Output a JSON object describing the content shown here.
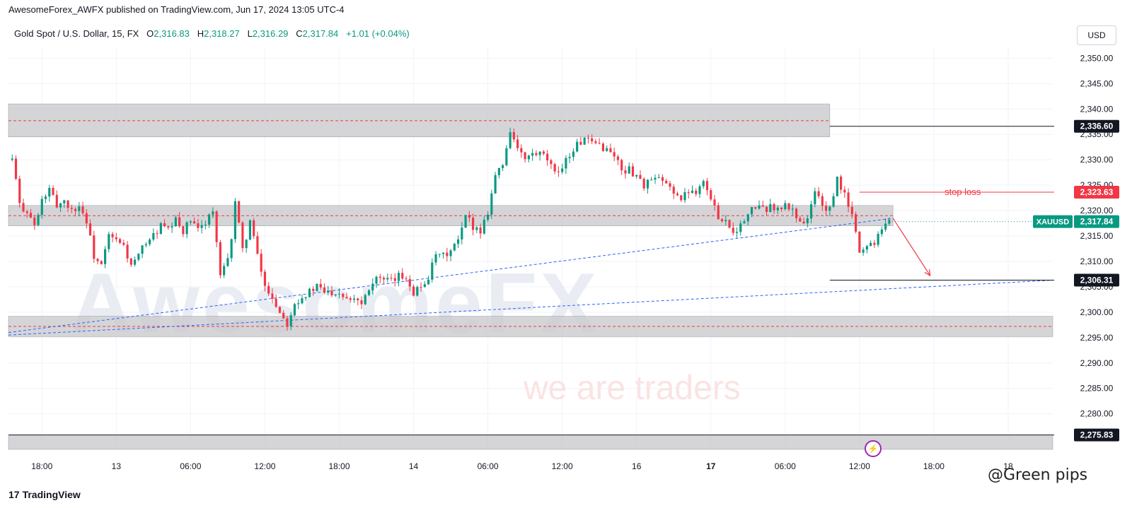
{
  "header": {
    "published": "AwesomeForex_AWFX published on TradingView.com, Jun 17, 2024 13:05 UTC-4"
  },
  "legend": {
    "symbol": "Gold Spot / U.S. Dollar, 15, FX",
    "o_label": "O",
    "o": "2,316.83",
    "h_label": "H",
    "h": "2,318.27",
    "l_label": "L",
    "l": "2,316.29",
    "c_label": "C",
    "c": "2,317.84",
    "change": "+1.01 (+0.04%)"
  },
  "currency_button": "USD",
  "watermark": {
    "text": "AwesomeFX",
    "tagline": "we are traders"
  },
  "footer": {
    "brand": "TradingView",
    "logo_glyph": "17",
    "user_mark": "@Green pips"
  },
  "chart_data": {
    "type": "candlestick",
    "symbol": "XAUUSD",
    "timeframe": "15",
    "ylim": [
      2273,
      2352
    ],
    "y_ticks": [
      2280,
      2285,
      2290,
      2295,
      2300,
      2305,
      2310,
      2315,
      2320,
      2325,
      2330,
      2335,
      2340,
      2345,
      2350
    ],
    "y_tick_labels": [
      "2,280.00",
      "2,285.00",
      "2,290.00",
      "2,295.00",
      "2,300.00",
      "2,305.00",
      "2,310.00",
      "2,315.00",
      "2,320.00",
      "2,325.00",
      "2,330.00",
      "2,335.00",
      "2,340.00",
      "2,345.00",
      "2,350.00"
    ],
    "x_ticks": [
      {
        "label": "18:00",
        "t": 4
      },
      {
        "label": "13",
        "t": 14
      },
      {
        "label": "06:00",
        "t": 24
      },
      {
        "label": "12:00",
        "t": 34
      },
      {
        "label": "18:00",
        "t": 44
      },
      {
        "label": "14",
        "t": 54
      },
      {
        "label": "06:00",
        "t": 64
      },
      {
        "label": "12:00",
        "t": 74
      },
      {
        "label": "16",
        "t": 84
      },
      {
        "label": "17",
        "t": 94
      },
      {
        "label": "06:00",
        "t": 104
      },
      {
        "label": "12:00",
        "t": 114
      },
      {
        "label": "18:00",
        "t": 124
      },
      {
        "label": "18",
        "t": 134
      }
    ],
    "t_range": [
      -0.5,
      140
    ],
    "close_path": [
      [
        0,
        2330
      ],
      [
        0.5,
        2326
      ],
      [
        1,
        2321
      ],
      [
        2,
        2320
      ],
      [
        3,
        2317
      ],
      [
        3.5,
        2319
      ],
      [
        4,
        2322
      ],
      [
        5,
        2324
      ],
      [
        6,
        2321
      ],
      [
        7,
        2322
      ],
      [
        8,
        2320
      ],
      [
        9,
        2321
      ],
      [
        10,
        2318
      ],
      [
        11,
        2311
      ],
      [
        12,
        2309
      ],
      [
        13,
        2315
      ],
      [
        14,
        2314
      ],
      [
        15,
        2313
      ],
      [
        16,
        2309
      ],
      [
        17,
        2311
      ],
      [
        18,
        2314
      ],
      [
        19,
        2315
      ],
      [
        20,
        2317
      ],
      [
        21,
        2316
      ],
      [
        22,
        2318
      ],
      [
        23,
        2316
      ],
      [
        24,
        2318
      ],
      [
        25,
        2316
      ],
      [
        26,
        2318
      ],
      [
        27,
        2320
      ],
      [
        27.6,
        2312
      ],
      [
        28,
        2307
      ],
      [
        29,
        2310
      ],
      [
        29.6,
        2316
      ],
      [
        30,
        2322
      ],
      [
        30.5,
        2317
      ],
      [
        31,
        2312
      ],
      [
        32,
        2318
      ],
      [
        33,
        2311
      ],
      [
        34,
        2305
      ],
      [
        35,
        2303
      ],
      [
        36,
        2300
      ],
      [
        37,
        2298
      ],
      [
        38,
        2302
      ],
      [
        39,
        2303
      ],
      [
        40,
        2304
      ],
      [
        41,
        2305
      ],
      [
        42,
        2304
      ],
      [
        43,
        2304
      ],
      [
        44,
        2304
      ],
      [
        45,
        2303
      ],
      [
        46,
        2303
      ],
      [
        47,
        2302
      ],
      [
        48,
        2305
      ],
      [
        49,
        2307
      ],
      [
        50,
        2306
      ],
      [
        51,
        2306
      ],
      [
        52,
        2307
      ],
      [
        53,
        2307
      ],
      [
        54,
        2304
      ],
      [
        55,
        2305
      ],
      [
        56,
        2307
      ],
      [
        57,
        2311
      ],
      [
        58,
        2311
      ],
      [
        59,
        2312
      ],
      [
        60,
        2314
      ],
      [
        60.5,
        2316
      ],
      [
        61,
        2319
      ],
      [
        62,
        2317
      ],
      [
        63,
        2316
      ],
      [
        64,
        2320
      ],
      [
        65,
        2327
      ],
      [
        66,
        2329
      ],
      [
        67,
        2336
      ],
      [
        68,
        2332
      ],
      [
        69,
        2330
      ],
      [
        70,
        2331
      ],
      [
        71,
        2331
      ],
      [
        72,
        2330
      ],
      [
        73,
        2327
      ],
      [
        74,
        2329
      ],
      [
        75,
        2331
      ],
      [
        76,
        2333
      ],
      [
        77,
        2334
      ],
      [
        78,
        2333
      ],
      [
        79,
        2333
      ],
      [
        80,
        2332
      ],
      [
        81,
        2331
      ],
      [
        82,
        2328
      ],
      [
        83,
        2328
      ],
      [
        84,
        2327
      ],
      [
        85,
        2325
      ],
      [
        86,
        2326
      ],
      [
        87,
        2326
      ],
      [
        88,
        2325
      ],
      [
        89,
        2324
      ],
      [
        90,
        2322
      ],
      [
        91,
        2324
      ],
      [
        92,
        2324
      ],
      [
        93,
        2326
      ],
      [
        94,
        2322
      ],
      [
        95,
        2319
      ],
      [
        96,
        2318
      ],
      [
        97,
        2316
      ],
      [
        98,
        2317
      ],
      [
        99,
        2319
      ],
      [
        100,
        2321
      ],
      [
        101,
        2320
      ],
      [
        102,
        2321
      ],
      [
        103,
        2320
      ],
      [
        104,
        2321
      ],
      [
        105,
        2320
      ],
      [
        106,
        2318
      ],
      [
        107,
        2318
      ],
      [
        108,
        2324
      ],
      [
        109,
        2321
      ],
      [
        110,
        2320
      ],
      [
        111,
        2326
      ],
      [
        112,
        2323
      ],
      [
        113,
        2319
      ],
      [
        114,
        2312
      ],
      [
        115,
        2313
      ],
      [
        116,
        2314
      ],
      [
        117,
        2317
      ],
      [
        118,
        2318
      ]
    ],
    "zones": [
      {
        "from_t": -0.5,
        "to_t": 110,
        "low": 2334.5,
        "high": 2341.0,
        "mid": 2337.7
      },
      {
        "from_t": -0.5,
        "to_t": 118.5,
        "low": 2317.0,
        "high": 2321.0,
        "mid": 2319.0
      },
      {
        "from_t": -0.5,
        "to_t": 140,
        "low": 2295.2,
        "high": 2299.2,
        "mid": 2297.2
      },
      {
        "from_t": -0.5,
        "to_t": 140,
        "low": 2273.0,
        "high": 2275.83,
        "mid": null
      }
    ],
    "horizontal_lines": [
      {
        "value": 2336.6,
        "from_t": 110,
        "label": "2,336.60",
        "color": "#131722"
      },
      {
        "value": 2323.63,
        "from_t": 114,
        "label": "2,323.63",
        "color": "#f23645",
        "text": "stop loss"
      },
      {
        "value": 2317.84,
        "from_t": 118,
        "label": "2,317.84",
        "color": "#089981",
        "symbol": "XAUUSD"
      },
      {
        "value": 2306.31,
        "from_t": 110,
        "label": "2,306.31",
        "color": "#131722"
      },
      {
        "value": 2275.83,
        "from_t": -0.5,
        "label": "2,275.83",
        "color": "#131722"
      }
    ],
    "trend_lines": [
      {
        "from": [
          -0.5,
          2296
        ],
        "to": [
          118.5,
          2318.5
        ],
        "color": "#2962ff",
        "style": "dashed"
      },
      {
        "from": [
          -0.5,
          2295.5
        ],
        "to": [
          140,
          2306.3
        ],
        "color": "#2962ff",
        "style": "dashed"
      }
    ],
    "arrow": {
      "from": [
        118.5,
        2318.5
      ],
      "to": [
        123.5,
        2307.2
      ],
      "color": "#f23645"
    },
    "colors": {
      "up": "#089981",
      "down": "#f23645",
      "zone": "#c7c7cb",
      "zone_mid": "#f23645"
    }
  }
}
